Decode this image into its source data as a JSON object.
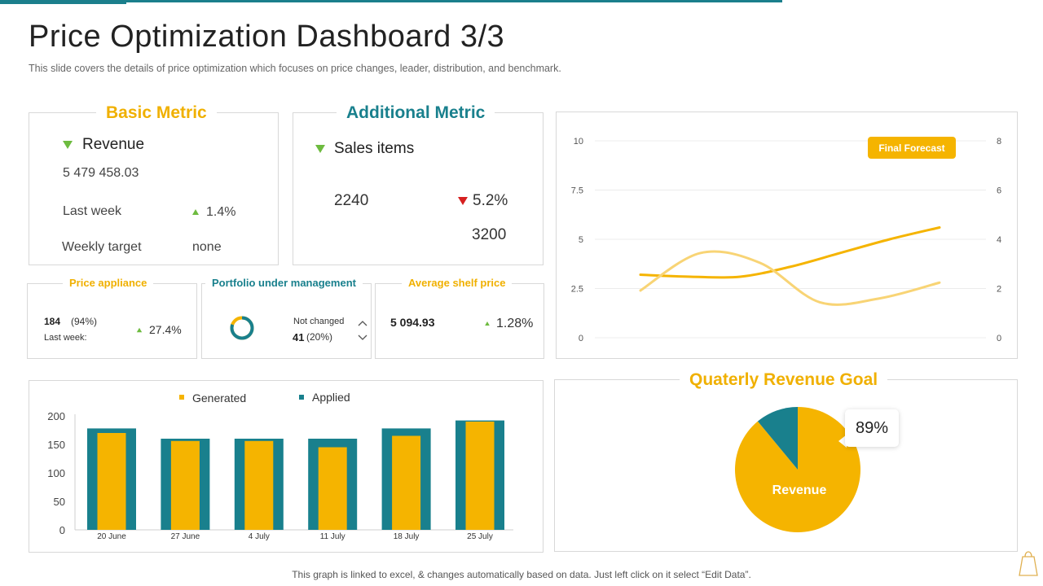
{
  "page": {
    "title": "Price Optimization Dashboard 3/3",
    "subtitle": "This slide covers the details of price optimization which focuses on price changes, leader, distribution, and benchmark.",
    "footer": "This graph is linked to excel, & changes automatically based on data. Just left click on it select “Edit Data”."
  },
  "basic_metric": {
    "title": "Basic Metric",
    "revenue_label": "Revenue",
    "revenue_value": "5 479 458.03",
    "last_week_label": "Last week",
    "last_week_value": "1.4%",
    "weekly_target_label": "Weekly target",
    "weekly_target_value": "none"
  },
  "additional_metric": {
    "title": "Additional Metric",
    "sales_label": "Sales items",
    "value_a": "2240",
    "change": "5.2%",
    "value_b": "3200"
  },
  "price_appliance": {
    "title": "Price appliance",
    "value": "184",
    "pct": "(94%)",
    "last_week_label": "Last week:",
    "change": "27.4%"
  },
  "portfolio": {
    "title": "Portfolio under management",
    "status_label": "Not changed",
    "value": "41",
    "pct": "(20%)",
    "donut_fraction": 0.8
  },
  "avg_shelf": {
    "title": "Average shelf price",
    "value": "5 094.93",
    "change": "1.28%"
  },
  "forecast_badge": "Final Forecast",
  "revenue_goal": {
    "title": "Quaterly Revenue Goal",
    "label": "Revenue",
    "percent_label": "89%"
  },
  "colors": {
    "gold": "#f5b400",
    "teal": "#19808d",
    "light_gold": "#f8d475",
    "green": "#6dbb3f",
    "red": "#d62020"
  },
  "chart_data": [
    {
      "type": "line",
      "title": "",
      "y_left_ticks": [
        "10",
        "7.5",
        "5",
        "2.5",
        "0"
      ],
      "y_right_ticks": [
        "8",
        "6",
        "4",
        "2",
        "0"
      ],
      "ylim": [
        0,
        10
      ],
      "ylim_right": [
        0,
        8
      ],
      "grid": true,
      "series": [
        {
          "values": [
            3.2,
            3.1,
            3.1,
            3.6,
            4.3,
            5.0,
            5.6
          ]
        },
        {
          "values": [
            2.4,
            4.3,
            3.8,
            1.8,
            2.0,
            2.8
          ]
        }
      ]
    },
    {
      "type": "bar",
      "categories": [
        "20 June",
        "27 June",
        "4 July",
        "11 July",
        "18 July",
        "25 July"
      ],
      "series": [
        {
          "name": "Applied",
          "values": [
            178,
            160,
            160,
            160,
            178,
            192
          ]
        },
        {
          "name": "Generated",
          "values": [
            170,
            156,
            156,
            145,
            165,
            190
          ]
        }
      ],
      "y_ticks": [
        "200",
        "150",
        "100",
        "50",
        "0"
      ],
      "ylim": [
        0,
        200
      ],
      "legend": "top"
    },
    {
      "type": "pie",
      "labels": [
        "Revenue",
        ""
      ],
      "values": [
        89,
        11
      ]
    }
  ]
}
